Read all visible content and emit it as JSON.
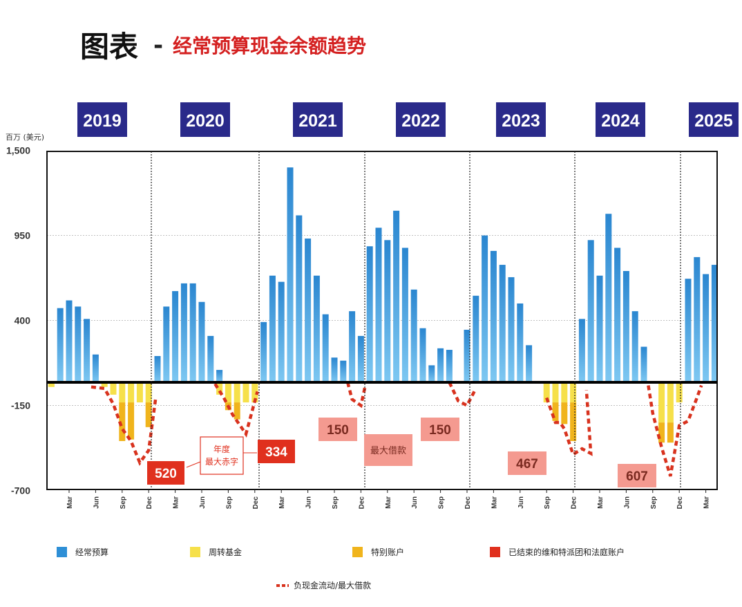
{
  "title": {
    "main": "图表",
    "dash": "-",
    "sub": "经常预算现金余额趋势"
  },
  "colors": {
    "title_red": "#d42020",
    "year_box": "#2a2a8a",
    "blue_bar": "#2e8fd6",
    "yellow": "#f6e04a",
    "gold": "#f0b41c",
    "red": "#e0301e",
    "red_line": "#d8321e",
    "pink_box": "#f49a90"
  },
  "chart_data": {
    "type": "bar",
    "ylabel": "百万 (美元)",
    "ylim": [
      -700,
      1500
    ],
    "yticks": [
      "1,500",
      "950",
      "400",
      "-150",
      "-700"
    ],
    "ytick_values": [
      1500,
      950,
      400,
      -150,
      -700
    ],
    "years": [
      "2019",
      "2020",
      "2021",
      "2022",
      "2023",
      "2024",
      "2025"
    ],
    "x_tick_labels": [
      "Mar",
      "Jun",
      "Sep",
      "Dec",
      "Mar",
      "Jun",
      "Sep",
      "Dec",
      "Mar",
      "Jun",
      "Sep",
      "Dec",
      "Mar",
      "Jun",
      "Sep",
      "Dec",
      "Mar",
      "Jun",
      "Sep",
      "Dec",
      "Mar",
      "Jun",
      "Sep",
      "Dec",
      "Mar"
    ],
    "x_tick_months": [
      2,
      5,
      8,
      11,
      14,
      17,
      20,
      23,
      26,
      29,
      32,
      35,
      38,
      41,
      44,
      47,
      50,
      53,
      56,
      59,
      62,
      65,
      68,
      71,
      74
    ],
    "series": [
      {
        "name": "经常预算",
        "color": "#2e8fd6",
        "values": [
          -30,
          480,
          530,
          490,
          410,
          180,
          0,
          0,
          0,
          0,
          0,
          0,
          170,
          490,
          590,
          640,
          640,
          520,
          300,
          80,
          0,
          0,
          0,
          0,
          390,
          690,
          650,
          1390,
          1080,
          930,
          690,
          440,
          160,
          140,
          460,
          300,
          880,
          1000,
          920,
          1110,
          870,
          600,
          350,
          110,
          220,
          210,
          0,
          340,
          560,
          950,
          850,
          760,
          680,
          510,
          240,
          0,
          0,
          0,
          0,
          0,
          410,
          920,
          690,
          1090,
          870,
          720,
          460,
          230,
          0,
          0,
          0,
          0,
          670,
          810,
          700,
          760
        ]
      },
      {
        "name": "周转基金",
        "color": "#f6e04a",
        "values": [
          0,
          0,
          0,
          0,
          0,
          0,
          -30,
          -80,
          -130,
          -130,
          -130,
          -130,
          0,
          0,
          0,
          0,
          0,
          0,
          0,
          -80,
          -130,
          -130,
          -130,
          -130,
          0,
          0,
          0,
          0,
          0,
          0,
          0,
          0,
          0,
          0,
          0,
          0,
          0,
          0,
          0,
          0,
          0,
          0,
          0,
          0,
          0,
          0,
          0,
          0,
          0,
          0,
          0,
          0,
          0,
          0,
          0,
          0,
          -130,
          -130,
          -130,
          -130,
          0,
          0,
          0,
          0,
          0,
          0,
          0,
          0,
          0,
          -260,
          -260,
          -130,
          0,
          0,
          0,
          0
        ]
      },
      {
        "name": "特别账户",
        "color": "#f0b41c",
        "values": [
          0,
          0,
          0,
          0,
          0,
          0,
          0,
          0,
          -250,
          -240,
          0,
          -160,
          0,
          0,
          0,
          0,
          0,
          0,
          0,
          0,
          -50,
          -110,
          0,
          0,
          0,
          0,
          0,
          0,
          0,
          0,
          0,
          0,
          0,
          0,
          0,
          0,
          0,
          0,
          0,
          0,
          0,
          0,
          0,
          0,
          0,
          0,
          0,
          0,
          0,
          0,
          0,
          0,
          0,
          0,
          0,
          0,
          0,
          -120,
          -140,
          -250,
          0,
          0,
          0,
          0,
          0,
          0,
          0,
          0,
          0,
          -130,
          -130,
          0,
          0,
          0,
          0,
          0
        ]
      },
      {
        "name": "已结束的维和特派团和法庭账户",
        "color": "#e0301e",
        "values": []
      },
      {
        "name": "负现金流动/最大借款",
        "color": "#d8321e",
        "line_values": [
          [
            4.5,
            -30
          ],
          [
            6,
            -40
          ],
          [
            7,
            -140
          ],
          [
            8,
            -300
          ],
          [
            9,
            -380
          ],
          [
            10,
            -520
          ],
          [
            11,
            -440
          ],
          [
            11.8,
            -100
          ],
          [
            18.5,
            -10
          ],
          [
            19.5,
            -100
          ],
          [
            20.5,
            -210
          ],
          [
            22,
            -334
          ],
          [
            23.3,
            -60
          ],
          [
            33.5,
            0
          ],
          [
            34,
            -110
          ],
          [
            35,
            -150
          ],
          [
            35.5,
            -20
          ],
          [
            45,
            0
          ],
          [
            46,
            -120
          ],
          [
            47,
            -150
          ],
          [
            48,
            -40
          ],
          [
            56,
            -100
          ],
          [
            57,
            -260
          ],
          [
            57.5,
            -260
          ],
          [
            58,
            -300
          ],
          [
            59,
            -467
          ],
          [
            60,
            -430
          ],
          [
            61,
            -460
          ],
          [
            60.5,
            -50
          ],
          [
            67.5,
            -20
          ],
          [
            68,
            -200
          ],
          [
            69,
            -420
          ],
          [
            70,
            -607
          ],
          [
            71,
            -280
          ],
          [
            72,
            -250
          ],
          [
            73,
            -100
          ],
          [
            73.5,
            -20
          ]
        ]
      }
    ],
    "legend": [
      {
        "label": "经常预算",
        "color": "#2e8fd6"
      },
      {
        "label": "周转基金",
        "color": "#f6e04a"
      },
      {
        "label": "特别账户",
        "color": "#f0b41c"
      },
      {
        "label": "已结束的维和特派团和法庭账户",
        "color": "#e0301e"
      }
    ],
    "legend_line": {
      "label": "负现金流动/最大借款"
    },
    "callouts": [
      {
        "text": "520",
        "style": "red",
        "month": 13
      },
      {
        "text": "334",
        "style": "red",
        "month": 25
      },
      {
        "text": "150",
        "style": "pink",
        "month": 34
      },
      {
        "text": "最大借款",
        "style": "pink",
        "month": 41
      },
      {
        "text": "150",
        "style": "pink",
        "month": 47
      },
      {
        "text": "467",
        "style": "pink",
        "month": 57
      },
      {
        "text": "607",
        "style": "pink",
        "month": 70
      }
    ],
    "annotation": {
      "line1": "年度",
      "line2": "最大赤字"
    },
    "grid": true
  }
}
